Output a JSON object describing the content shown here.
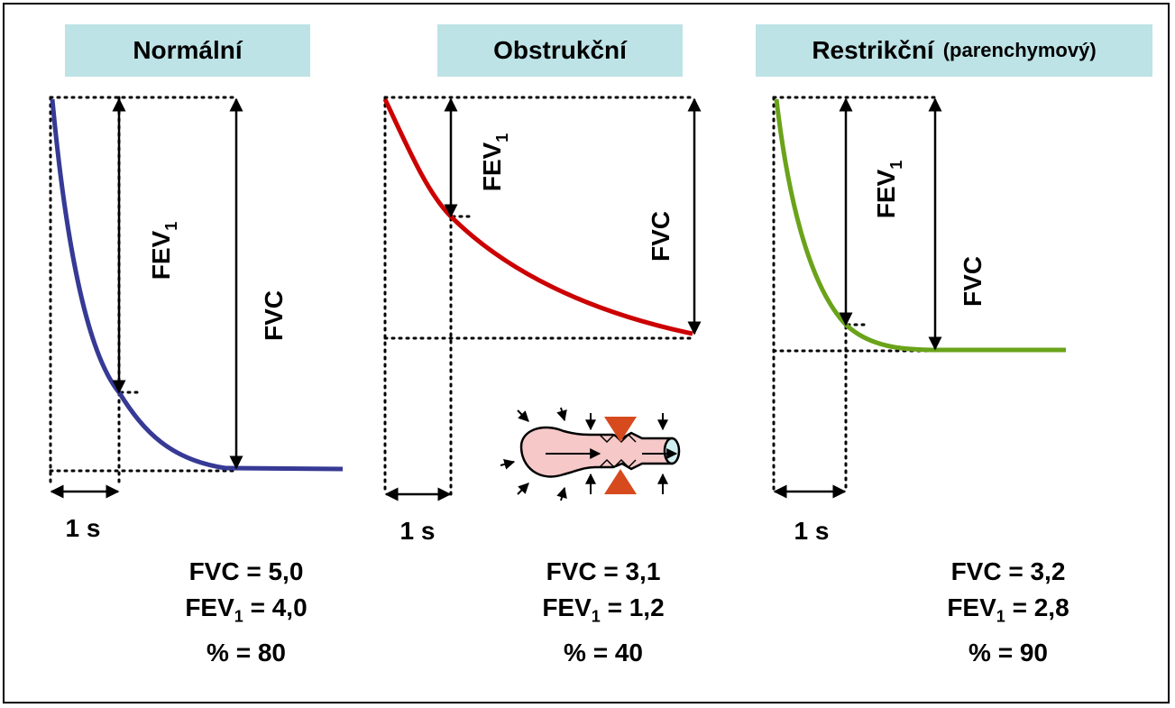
{
  "colors": {
    "title_bg": "#bde3e6",
    "normal_curve": "#363a95",
    "obstructive_curve": "#cc0000",
    "restrictive_curve": "#6aa31a",
    "bronchus_fill": "#f6c8c8",
    "constriction": "#d64a1e"
  },
  "panels": [
    {
      "title": "Normální",
      "subtitle": "",
      "fev_label": "FEV",
      "fev_sub": "1",
      "fvc_label": "FVC",
      "time_label": "1 s",
      "fvc_line": "FVC = 5,0",
      "fev_line_prefix": "FEV",
      "fev_line_sub": "1",
      "fev_line_suffix": " = 4,0",
      "pct_line": "% = 80"
    },
    {
      "title": "Obstrukční",
      "subtitle": "",
      "fev_label": "FEV",
      "fev_sub": "1",
      "fvc_label": "FVC",
      "time_label": "1 s",
      "fvc_line": "FVC = 3,1",
      "fev_line_prefix": "FEV",
      "fev_line_sub": "1",
      "fev_line_suffix": " = 1,2",
      "pct_line": "% = 40"
    },
    {
      "title": "Restrikční",
      "subtitle": "(parenchymový)",
      "fev_label": "FEV",
      "fev_sub": "1",
      "fvc_label": "FVC",
      "time_label": "1 s",
      "fvc_line": "FVC = 3,2",
      "fev_line_prefix": "FEV",
      "fev_line_sub": "1",
      "fev_line_suffix": " = 2,8",
      "pct_line": "% = 90"
    }
  ],
  "icons": {
    "bronchus": "narrowed-bronchus-icon"
  }
}
